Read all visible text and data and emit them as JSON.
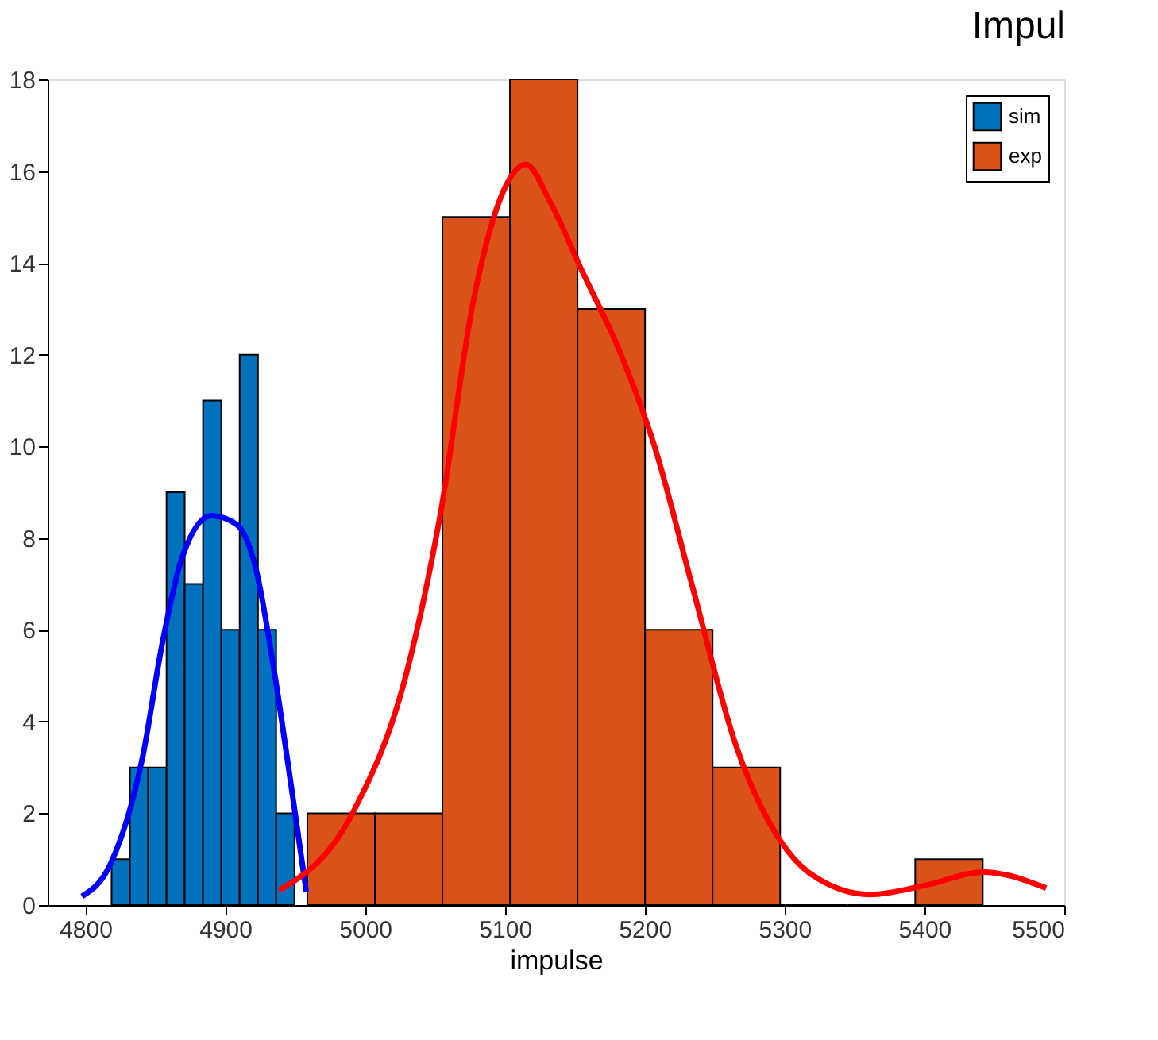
{
  "chart_data": {
    "type": "histogram",
    "title": "Impul",
    "xlabel": "impulse",
    "xlim": [
      4773,
      5500
    ],
    "xticks": [
      4800,
      4900,
      5000,
      5100,
      5200,
      5300,
      5400,
      5500
    ],
    "ylim": [
      0,
      18
    ],
    "yticks": [
      0,
      2,
      4,
      6,
      8,
      10,
      12,
      14,
      16,
      18
    ],
    "grid": false,
    "legend": "top right",
    "series": [
      {
        "name": "sim",
        "color": "#0072bd",
        "bins": [
          4818.7,
          4831.8,
          4844.9,
          4858.0,
          4871.0,
          4884.1,
          4897.2,
          4910.3,
          4923.4,
          4936.4,
          4949.5
        ],
        "values": [
          1,
          3,
          3,
          9,
          7,
          11,
          6,
          12,
          6,
          2
        ]
      },
      {
        "name": "exp",
        "color": "#d95319",
        "bins": [
          4958.7,
          5007.0,
          5055.3,
          5103.6,
          5151.9,
          5200.2,
          5248.5,
          5296.8,
          5345.1,
          5393.4,
          5441.7
        ],
        "values": [
          2,
          2,
          15,
          18,
          13,
          6,
          3,
          0,
          0,
          1
        ]
      },
      {
        "type": "line",
        "color": "#0000ff",
        "x": [
          4797.5,
          4818,
          4841,
          4855,
          4869,
          4890,
          4908,
          4922,
          4935,
          4947,
          4958
        ],
        "values": [
          0.19,
          0.9,
          3.24,
          5.71,
          7.56,
          8.49,
          8.3,
          7.32,
          5.1,
          2.63,
          0.28
        ]
      },
      {
        "type": "line",
        "color": "#ff0000",
        "x": [
          4938.5,
          4991,
          5030,
          5054,
          5077,
          5101,
          5115,
          5132,
          5154,
          5183,
          5207,
          5234,
          5265,
          5297,
          5320,
          5361,
          5402,
          5442,
          5487
        ],
        "values": [
          0.32,
          2.0,
          5.1,
          8.55,
          13.1,
          15.7,
          16.15,
          15.35,
          13.9,
          12.0,
          10.0,
          6.95,
          3.5,
          1.4,
          0.65,
          0.23,
          0.44,
          0.72,
          0.37
        ]
      }
    ]
  }
}
